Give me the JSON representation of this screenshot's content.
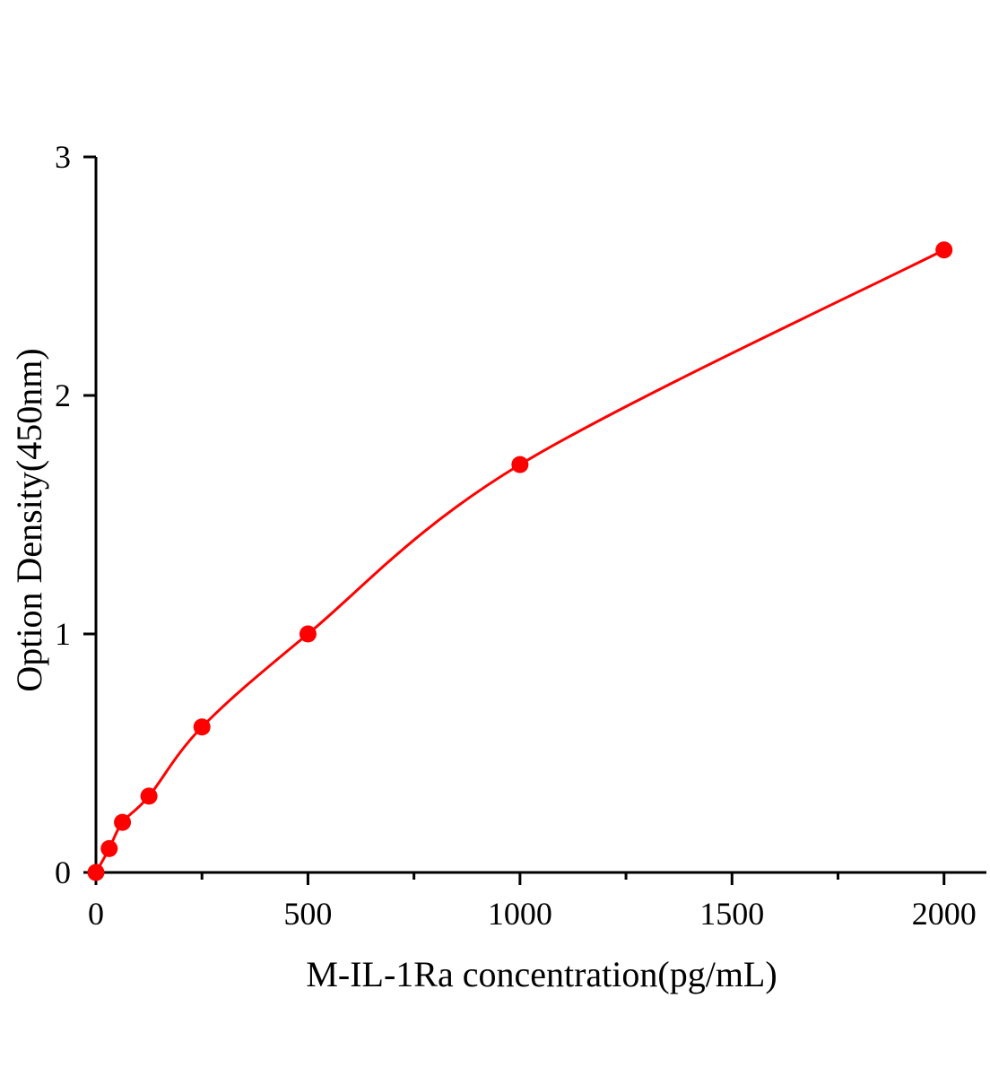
{
  "chart_data": {
    "type": "line",
    "title": "",
    "xlabel": "M-IL-1Ra concentration(pg/mL)",
    "ylabel": "Option Density(450nm)",
    "xlim": [
      0,
      2100
    ],
    "ylim": [
      0,
      3
    ],
    "x_ticks": [
      0,
      500,
      1000,
      1500,
      2000
    ],
    "x_minor_ticks": [
      250,
      750,
      1250,
      1750
    ],
    "y_ticks": [
      0,
      1,
      2,
      3
    ],
    "grid": false,
    "color": "#ff0000",
    "series": [
      {
        "x": [
          0,
          31.25,
          62.5,
          125,
          250,
          500,
          1000,
          2000
        ],
        "y": [
          0,
          0.1,
          0.21,
          0.32,
          0.61,
          1.0,
          1.71,
          2.61
        ]
      }
    ]
  }
}
